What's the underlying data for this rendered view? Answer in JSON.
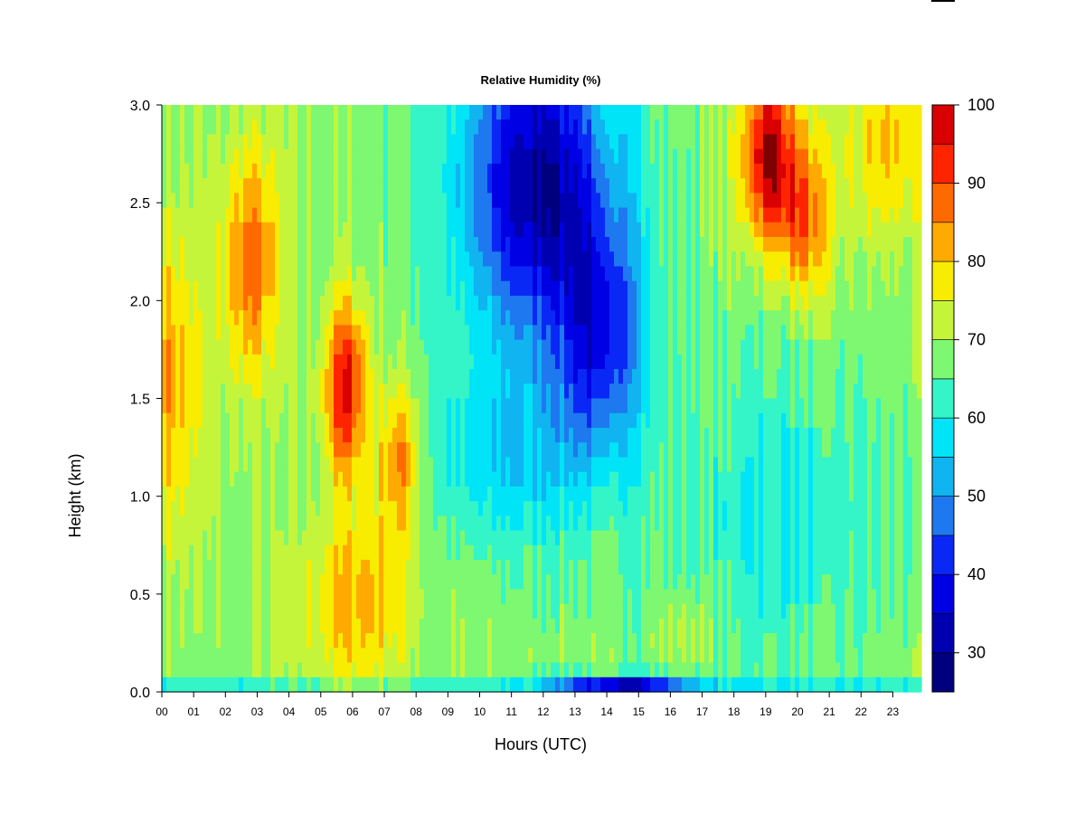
{
  "chart_data": {
    "type": "heatmap",
    "title": "Relative Humidity (%)",
    "xlabel": "Hours (UTC)",
    "ylabel": "Height (km)",
    "x_ticks": [
      "00",
      "01",
      "02",
      "03",
      "04",
      "05",
      "06",
      "07",
      "08",
      "09",
      "10",
      "11",
      "12",
      "13",
      "14",
      "15",
      "16",
      "17",
      "18",
      "19",
      "20",
      "21",
      "22",
      "23"
    ],
    "y_ticks": [
      "0.0",
      "0.5",
      "1.0",
      "1.5",
      "2.0",
      "2.5",
      "3.0"
    ],
    "xlim": [
      0,
      23.9
    ],
    "ylim": [
      0,
      3.0
    ],
    "colorbar": {
      "range": [
        25,
        100
      ],
      "ticks": [
        "30",
        "40",
        "50",
        "60",
        "70",
        "80",
        "90",
        "100"
      ],
      "levels": [
        25,
        30,
        35,
        40,
        45,
        50,
        55,
        60,
        65,
        70,
        75,
        80,
        85,
        90,
        95,
        100
      ],
      "colors": [
        "#00007F",
        "#0000B0",
        "#0000E5",
        "#0A28F5",
        "#1E78F0",
        "#0FB4F0",
        "#00E4F8",
        "#33F5C8",
        "#7DF870",
        "#C5F53A",
        "#F8EC00",
        "#FFAA00",
        "#FF6A00",
        "#FF2400",
        "#D80000",
        "#7F0000"
      ]
    },
    "features": [
      {
        "hour": 0.0,
        "height": 1.6,
        "rh": 85
      },
      {
        "hour": 2.8,
        "height": 2.2,
        "rh": 88
      },
      {
        "hour": 5.8,
        "height": 1.55,
        "rh": 97
      },
      {
        "hour": 7.5,
        "height": 1.2,
        "rh": 88
      },
      {
        "hour": 6.5,
        "height": 0.4,
        "rh": 83
      },
      {
        "hour": 12.0,
        "height": 2.7,
        "rh": 32
      },
      {
        "hour": 13.8,
        "height": 1.8,
        "rh": 40
      },
      {
        "hour": 14.8,
        "height": 0.05,
        "rh": 42
      },
      {
        "hour": 19.1,
        "height": 2.8,
        "rh": 98
      },
      {
        "hour": 16.5,
        "height": 0.3,
        "rh": 72
      },
      {
        "hour": 22.5,
        "height": 2.8,
        "rh": 80
      }
    ]
  }
}
